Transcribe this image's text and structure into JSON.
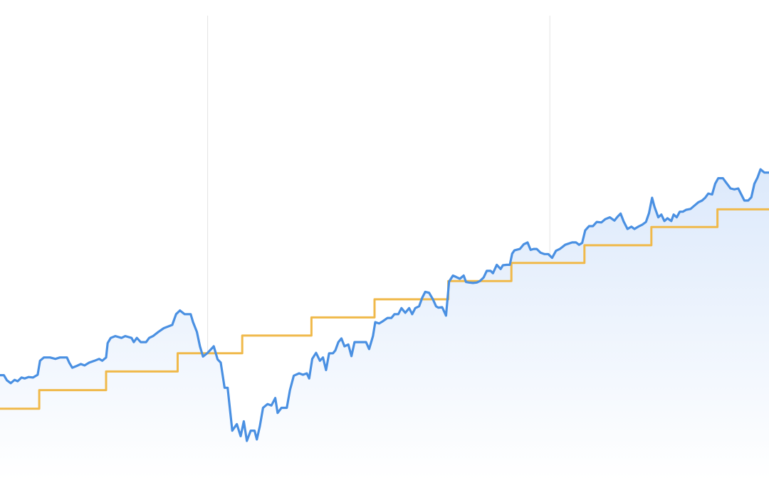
{
  "chart_data": {
    "type": "line",
    "title": "",
    "xlabel": "",
    "ylabel": "",
    "grid": {
      "vertical": true,
      "horizontal": false
    },
    "xlim": [
      0,
      100
    ],
    "ylim": [
      0,
      100
    ],
    "vertical_gridlines_x": [
      27,
      71.5
    ],
    "series": [
      {
        "key": "value",
        "color": "#4a90e2",
        "fill_top": "#dce9fb",
        "fill_bottom": "#ffffff",
        "points": [
          [
            0,
            22.5
          ],
          [
            0.5,
            22.5
          ],
          [
            0.9,
            21.4
          ],
          [
            1.4,
            20.8
          ],
          [
            1.9,
            21.5
          ],
          [
            2.3,
            21.2
          ],
          [
            2.8,
            22.0
          ],
          [
            3.2,
            21.8
          ],
          [
            3.7,
            22.1
          ],
          [
            4.3,
            22.0
          ],
          [
            4.9,
            22.6
          ],
          [
            5.2,
            25.6
          ],
          [
            5.7,
            26.3
          ],
          [
            6.5,
            26.3
          ],
          [
            7.2,
            26.0
          ],
          [
            7.8,
            26.3
          ],
          [
            8.7,
            26.3
          ],
          [
            9.0,
            25.2
          ],
          [
            9.4,
            24.1
          ],
          [
            10.0,
            24.5
          ],
          [
            10.5,
            24.9
          ],
          [
            11.0,
            24.6
          ],
          [
            11.6,
            25.2
          ],
          [
            12.3,
            25.6
          ],
          [
            12.9,
            26.0
          ],
          [
            13.3,
            25.6
          ],
          [
            13.8,
            26.3
          ],
          [
            14.0,
            29.4
          ],
          [
            14.4,
            30.5
          ],
          [
            15.0,
            30.9
          ],
          [
            15.8,
            30.5
          ],
          [
            16.3,
            30.9
          ],
          [
            17.1,
            30.5
          ],
          [
            17.4,
            29.6
          ],
          [
            17.8,
            30.5
          ],
          [
            18.3,
            29.6
          ],
          [
            19.0,
            29.6
          ],
          [
            19.4,
            30.5
          ],
          [
            19.9,
            30.9
          ],
          [
            20.6,
            31.8
          ],
          [
            21.3,
            32.6
          ],
          [
            22.4,
            33.3
          ],
          [
            22.9,
            35.6
          ],
          [
            23.4,
            36.4
          ],
          [
            24.0,
            35.6
          ],
          [
            24.8,
            35.6
          ],
          [
            25.1,
            33.9
          ],
          [
            25.6,
            31.8
          ],
          [
            26.0,
            28.7
          ],
          [
            26.4,
            26.5
          ],
          [
            27.0,
            27.3
          ],
          [
            27.8,
            28.7
          ],
          [
            28.3,
            25.9
          ],
          [
            28.7,
            25.2
          ],
          [
            29.2,
            19.8
          ],
          [
            29.6,
            19.8
          ],
          [
            30.2,
            10.6
          ],
          [
            30.8,
            12.0
          ],
          [
            31.3,
            9.4
          ],
          [
            31.7,
            12.6
          ],
          [
            32.1,
            8.4
          ],
          [
            32.6,
            10.6
          ],
          [
            33.1,
            10.6
          ],
          [
            33.4,
            8.7
          ],
          [
            33.8,
            11.6
          ],
          [
            34.2,
            15.5
          ],
          [
            34.8,
            16.3
          ],
          [
            35.3,
            16.0
          ],
          [
            35.8,
            17.6
          ],
          [
            36.1,
            14.4
          ],
          [
            36.6,
            15.5
          ],
          [
            37.3,
            15.5
          ],
          [
            37.7,
            19.3
          ],
          [
            38.2,
            22.4
          ],
          [
            38.9,
            22.9
          ],
          [
            39.4,
            22.6
          ],
          [
            39.9,
            22.9
          ],
          [
            40.2,
            21.8
          ],
          [
            40.6,
            26.0
          ],
          [
            41.1,
            27.3
          ],
          [
            41.6,
            25.6
          ],
          [
            42.0,
            26.3
          ],
          [
            42.4,
            23.6
          ],
          [
            42.8,
            27.2
          ],
          [
            43.3,
            27.2
          ],
          [
            43.6,
            27.8
          ],
          [
            44.0,
            29.6
          ],
          [
            44.4,
            30.4
          ],
          [
            44.8,
            28.7
          ],
          [
            45.3,
            29.1
          ],
          [
            45.7,
            26.6
          ],
          [
            46.1,
            29.6
          ],
          [
            46.6,
            29.6
          ],
          [
            47.1,
            29.6
          ],
          [
            47.6,
            29.6
          ],
          [
            48.0,
            28.1
          ],
          [
            48.5,
            30.9
          ],
          [
            48.8,
            33.9
          ],
          [
            49.3,
            33.6
          ],
          [
            49.8,
            34.1
          ],
          [
            50.4,
            34.8
          ],
          [
            50.9,
            34.8
          ],
          [
            51.3,
            35.6
          ],
          [
            51.8,
            35.6
          ],
          [
            52.2,
            36.9
          ],
          [
            52.7,
            35.9
          ],
          [
            53.2,
            36.9
          ],
          [
            53.6,
            35.6
          ],
          [
            54.0,
            36.9
          ],
          [
            54.5,
            37.3
          ],
          [
            54.9,
            39.1
          ],
          [
            55.3,
            40.4
          ],
          [
            55.8,
            40.2
          ],
          [
            56.3,
            38.8
          ],
          [
            56.7,
            37.3
          ],
          [
            57.0,
            37.0
          ],
          [
            57.5,
            37.1
          ],
          [
            58.0,
            35.3
          ],
          [
            58.4,
            42.6
          ],
          [
            58.9,
            43.9
          ],
          [
            59.3,
            43.6
          ],
          [
            59.8,
            43.2
          ],
          [
            60.3,
            43.9
          ],
          [
            60.6,
            42.5
          ],
          [
            61.0,
            42.4
          ],
          [
            61.5,
            42.3
          ],
          [
            62.0,
            42.4
          ],
          [
            62.4,
            42.7
          ],
          [
            62.9,
            43.5
          ],
          [
            63.3,
            44.9
          ],
          [
            63.8,
            44.9
          ],
          [
            64.1,
            44.4
          ],
          [
            64.6,
            46.2
          ],
          [
            65.1,
            45.3
          ],
          [
            65.4,
            46.1
          ],
          [
            65.9,
            46.2
          ],
          [
            66.3,
            46.2
          ],
          [
            66.6,
            48.6
          ],
          [
            66.9,
            49.3
          ],
          [
            67.6,
            49.6
          ],
          [
            68.1,
            50.6
          ],
          [
            68.6,
            51.0
          ],
          [
            69.0,
            49.4
          ],
          [
            69.4,
            49.6
          ],
          [
            69.8,
            49.6
          ],
          [
            70.3,
            48.8
          ],
          [
            70.8,
            48.5
          ],
          [
            71.3,
            48.5
          ],
          [
            71.8,
            47.7
          ],
          [
            72.3,
            49.2
          ],
          [
            72.8,
            49.6
          ],
          [
            73.5,
            50.5
          ],
          [
            74.4,
            51.0
          ],
          [
            74.9,
            51.0
          ],
          [
            75.3,
            50.5
          ],
          [
            75.7,
            50.9
          ],
          [
            76.1,
            53.6
          ],
          [
            76.6,
            54.5
          ],
          [
            77.1,
            54.5
          ],
          [
            77.6,
            55.4
          ],
          [
            78.2,
            55.3
          ],
          [
            78.7,
            56.0
          ],
          [
            79.3,
            56.4
          ],
          [
            79.9,
            55.7
          ],
          [
            80.3,
            56.5
          ],
          [
            80.7,
            57.2
          ],
          [
            81.1,
            55.5
          ],
          [
            81.6,
            53.9
          ],
          [
            82.1,
            54.4
          ],
          [
            82.5,
            53.9
          ],
          [
            83.0,
            54.4
          ],
          [
            83.5,
            54.8
          ],
          [
            84.0,
            55.4
          ],
          [
            84.4,
            57.3
          ],
          [
            84.8,
            60.6
          ],
          [
            85.1,
            58.7
          ],
          [
            85.6,
            56.4
          ],
          [
            86.0,
            57.0
          ],
          [
            86.4,
            55.6
          ],
          [
            86.8,
            56.2
          ],
          [
            87.3,
            55.6
          ],
          [
            87.6,
            57.0
          ],
          [
            88.0,
            56.4
          ],
          [
            88.4,
            57.6
          ],
          [
            88.8,
            57.6
          ],
          [
            89.2,
            58.0
          ],
          [
            89.8,
            58.2
          ],
          [
            90.3,
            58.9
          ],
          [
            90.8,
            59.6
          ],
          [
            91.3,
            60.0
          ],
          [
            91.7,
            60.6
          ],
          [
            92.1,
            61.5
          ],
          [
            92.6,
            61.3
          ],
          [
            93.0,
            63.6
          ],
          [
            93.4,
            64.8
          ],
          [
            94.0,
            64.8
          ],
          [
            94.5,
            63.7
          ],
          [
            95.0,
            62.6
          ],
          [
            95.5,
            62.4
          ],
          [
            96.0,
            62.6
          ],
          [
            96.4,
            61.3
          ],
          [
            96.8,
            60.0
          ],
          [
            97.3,
            60.0
          ],
          [
            97.7,
            60.7
          ],
          [
            98.1,
            63.6
          ],
          [
            98.5,
            64.9
          ],
          [
            98.9,
            66.7
          ],
          [
            99.4,
            66.0
          ],
          [
            100,
            66.0
          ]
        ]
      },
      {
        "key": "target",
        "color": "#f0b94a",
        "step": true,
        "points": [
          [
            0,
            15.3
          ],
          [
            5.1,
            15.3
          ],
          [
            5.1,
            19.3
          ],
          [
            13.8,
            19.3
          ],
          [
            13.8,
            23.3
          ],
          [
            23.1,
            23.3
          ],
          [
            23.1,
            27.2
          ],
          [
            31.5,
            27.2
          ],
          [
            31.5,
            31.0
          ],
          [
            40.5,
            31.0
          ],
          [
            40.5,
            34.9
          ],
          [
            48.7,
            34.9
          ],
          [
            48.7,
            38.8
          ],
          [
            58.3,
            38.8
          ],
          [
            58.3,
            42.7
          ],
          [
            66.5,
            42.7
          ],
          [
            66.5,
            46.6
          ],
          [
            76.0,
            46.6
          ],
          [
            76.0,
            50.4
          ],
          [
            84.7,
            50.4
          ],
          [
            84.7,
            54.3
          ],
          [
            93.3,
            54.3
          ],
          [
            93.3,
            58.1
          ],
          [
            100,
            58.1
          ]
        ]
      }
    ]
  }
}
